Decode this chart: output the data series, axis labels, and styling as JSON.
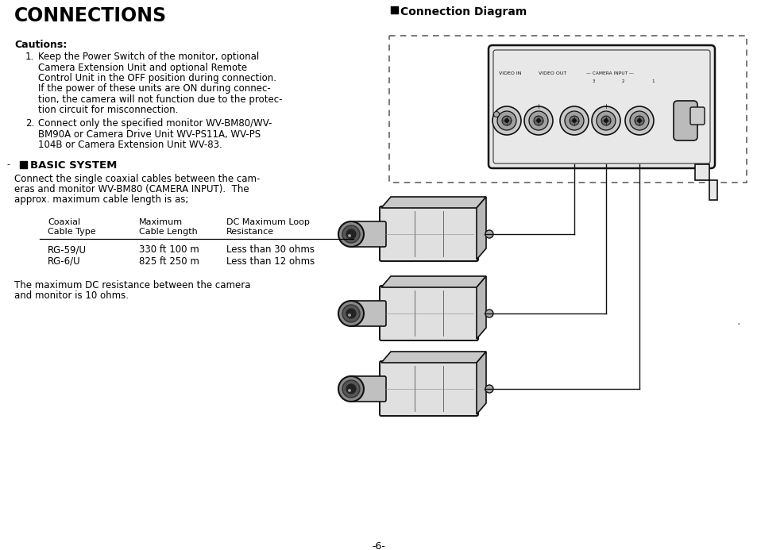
{
  "bg_color": "#ffffff",
  "title": "CONNECTIONS",
  "cautions_label": "Cautions:",
  "caution1_lines": [
    "Keep the Power Switch of the monitor, optional",
    "Camera Extension Unit and optional Remote",
    "Control Unit in the OFF position during connection.",
    "If the power of these units are ON during connec-",
    "tion, the camera will not function due to the protec-",
    "tion circuit for misconnection."
  ],
  "caution2_lines": [
    "Connect only the specified monitor WV-BM80/WV-",
    "BM90A or Camera Drive Unit WV-PS11A, WV-PS",
    "104B or Camera Extension Unit WV-83."
  ],
  "basic_system_label": "BASIC SYSTEM",
  "basic_system_lines": [
    "Connect the single coaxial cables between the cam-",
    "eras and monitor WV-BM80 (CAMERA INPUT).  The",
    "approx. maximum cable length is as;"
  ],
  "table_col1_header": [
    "Coaxial",
    "Cable Type"
  ],
  "table_col2_header": [
    "Maximum",
    "Cable Length"
  ],
  "table_col3_header": [
    "DC Maximum Loop",
    "Resistance"
  ],
  "table_row1": [
    "RG-59/U",
    "330 ft 100 m",
    "Less than 30 ohms"
  ],
  "table_row2": [
    "RG-6/U",
    "825 ft 250 m",
    "Less than 12 ohms"
  ],
  "footer_lines": [
    "The maximum DC resistance between the camera",
    "and monitor is 10 ohms."
  ],
  "page_number": "-6-",
  "conn_diagram_label": "Connection Diagram",
  "panel_labels": [
    "VIDEO IN",
    "VIDEO OUT",
    "— CAMERA INPUT —"
  ],
  "text_color": "#000000",
  "line_color": "#000000",
  "panel_bg": "#e8e8e8",
  "cam_body_color": "#e0e0e0",
  "cam_lens_color": "#c0c0c0"
}
